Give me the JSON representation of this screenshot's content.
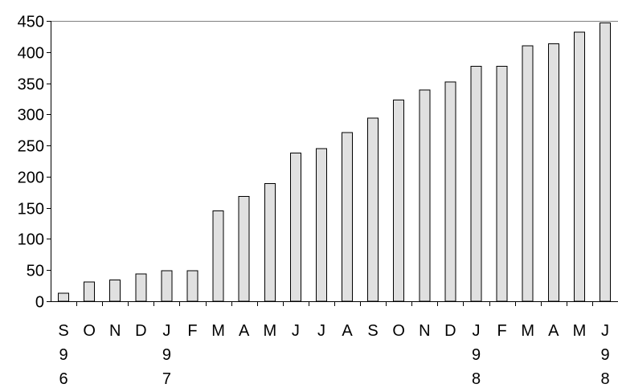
{
  "chart_data": {
    "type": "bar",
    "title": "",
    "xlabel": "",
    "ylabel": "",
    "ylim": [
      0,
      450
    ],
    "y_ticks": [
      0,
      50,
      100,
      150,
      200,
      250,
      300,
      350,
      400,
      450
    ],
    "grid": false,
    "legend": "none",
    "categories": [
      {
        "month": "S",
        "year": [
          "9",
          "6"
        ]
      },
      {
        "month": "O",
        "year": []
      },
      {
        "month": "N",
        "year": []
      },
      {
        "month": "D",
        "year": []
      },
      {
        "month": "J",
        "year": [
          "9",
          "7"
        ]
      },
      {
        "month": "F",
        "year": []
      },
      {
        "month": "M",
        "year": []
      },
      {
        "month": "A",
        "year": []
      },
      {
        "month": "M",
        "year": []
      },
      {
        "month": "J",
        "year": []
      },
      {
        "month": "J",
        "year": []
      },
      {
        "month": "A",
        "year": []
      },
      {
        "month": "S",
        "year": []
      },
      {
        "month": "O",
        "year": []
      },
      {
        "month": "N",
        "year": []
      },
      {
        "month": "D",
        "year": []
      },
      {
        "month": "J",
        "year": [
          "9",
          "8"
        ]
      },
      {
        "month": "F",
        "year": []
      },
      {
        "month": "M",
        "year": []
      },
      {
        "month": "A",
        "year": []
      },
      {
        "month": "M",
        "year": []
      },
      {
        "month": "J",
        "year": [
          "9",
          "8"
        ]
      }
    ],
    "values": [
      13,
      31,
      34,
      44,
      49,
      49,
      145,
      168,
      189,
      238,
      245,
      271,
      294,
      323,
      339,
      352,
      377,
      377,
      410,
      413,
      432,
      447
    ],
    "colors": {
      "bar_fill": "#e0e0e0",
      "bar_stroke": "#000000",
      "axis": "#000000",
      "top_border": "#808080"
    }
  }
}
